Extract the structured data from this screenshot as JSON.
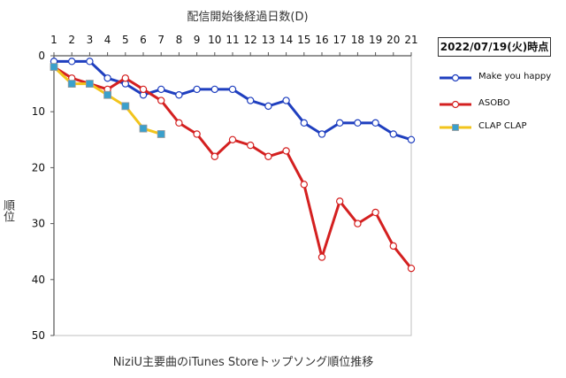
{
  "chart_data": {
    "type": "line",
    "top_axis_title": "配信開始後経過日数(D)",
    "ylabel": "順位",
    "bottom_title": "NiziU主要曲のiTunes Storeトップソング順位推移",
    "date_label": "2022/07/19(火)時点",
    "x": [
      1,
      2,
      3,
      4,
      5,
      6,
      7,
      8,
      9,
      10,
      11,
      12,
      13,
      14,
      15,
      16,
      17,
      18,
      19,
      20,
      21
    ],
    "xlim": [
      1,
      21
    ],
    "ylim": [
      0,
      50
    ],
    "y_inverted": true,
    "y_ticks": [
      0,
      10,
      20,
      30,
      40,
      50
    ],
    "grid": false,
    "legend_position": "right",
    "series": [
      {
        "name": "Make you happy",
        "color": "#1f3fbf",
        "marker_fill": "#ffffff",
        "marker": "circle",
        "x": [
          1,
          2,
          3,
          4,
          5,
          6,
          7,
          8,
          9,
          10,
          11,
          12,
          13,
          14,
          15,
          16,
          17,
          18,
          19,
          20,
          21
        ],
        "values": [
          1,
          1,
          1,
          4,
          5,
          7,
          6,
          7,
          6,
          6,
          6,
          8,
          9,
          8,
          12,
          14,
          12,
          12,
          12,
          14,
          15
        ]
      },
      {
        "name": "ASOBO",
        "color": "#d42020",
        "marker_fill": "#ffffff",
        "marker": "circle",
        "x": [
          1,
          2,
          3,
          4,
          5,
          6,
          7,
          8,
          9,
          10,
          11,
          12,
          13,
          14,
          15,
          16,
          17,
          18,
          19,
          20,
          21
        ],
        "values": [
          2,
          4,
          5,
          6,
          4,
          6,
          8,
          12,
          14,
          18,
          15,
          16,
          18,
          17,
          23,
          36,
          26,
          30,
          28,
          34,
          38
        ]
      },
      {
        "name": "CLAP CLAP",
        "color": "#f2c41c",
        "marker_fill": "#3aa0cc",
        "marker": "square",
        "x": [
          1,
          2,
          3,
          4,
          5,
          6,
          7
        ],
        "values": [
          2,
          5,
          5,
          7,
          9,
          13,
          14
        ]
      }
    ]
  }
}
